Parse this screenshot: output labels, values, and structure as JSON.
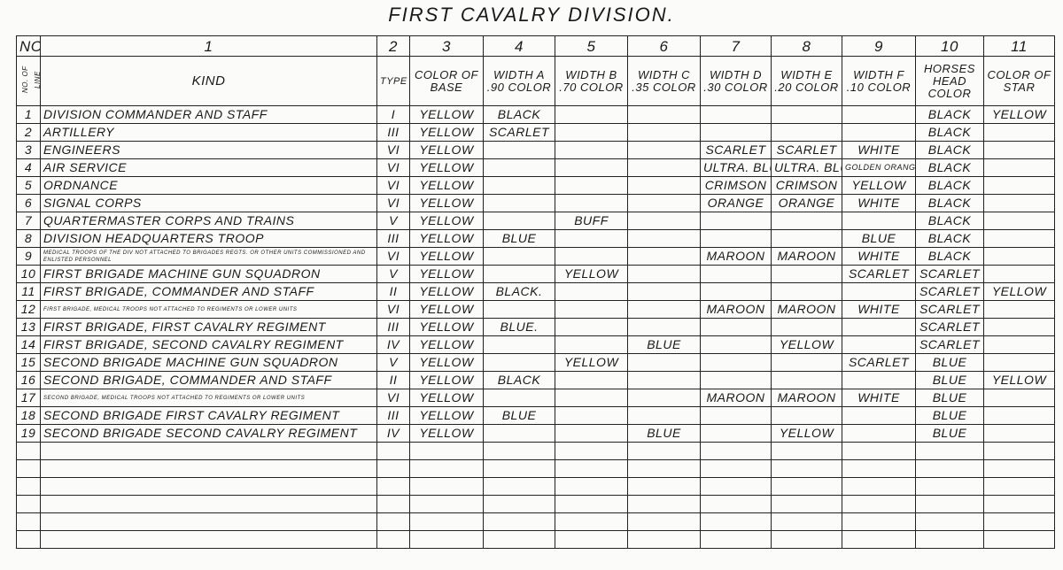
{
  "title": "FIRST CAVALRY DIVISION.",
  "header": {
    "corner_top": "NO. OF COL.",
    "corner_side": "NO. OF LINE",
    "column_numbers": [
      "1",
      "2",
      "3",
      "4",
      "5",
      "6",
      "7",
      "8",
      "9",
      "10",
      "11"
    ],
    "column_labels": [
      "KIND",
      "TYPE",
      "COLOR OF BASE",
      "WIDTH A .90 COLOR",
      "WIDTH B .70 COLOR",
      "WIDTH C .35 COLOR",
      "WIDTH D .30 COLOR",
      "WIDTH E .20 COLOR",
      "WIDTH F .10 COLOR",
      "HORSES HEAD COLOR",
      "COLOR OF STAR"
    ]
  },
  "rows": [
    {
      "line": "1",
      "kind": "DIVISION COMMANDER AND STAFF",
      "cells": [
        "I",
        "YELLOW",
        "BLACK",
        "",
        "",
        "",
        "",
        "",
        "BLACK",
        "YELLOW"
      ]
    },
    {
      "line": "2",
      "kind": "ARTILLERY",
      "cells": [
        "III",
        "YELLOW",
        "SCARLET",
        "",
        "",
        "",
        "",
        "",
        "BLACK",
        ""
      ]
    },
    {
      "line": "3",
      "kind": "ENGINEERS",
      "cells": [
        "VI",
        "YELLOW",
        "",
        "",
        "",
        "SCARLET",
        "SCARLET",
        "WHITE",
        "BLACK",
        ""
      ]
    },
    {
      "line": "4",
      "kind": "AIR SERVICE",
      "cells": [
        "VI",
        "YELLOW",
        "",
        "",
        "",
        "ULTRA. BLUE",
        "ULTRA. BLUE",
        "GOLDEN ORANGE",
        "BLACK",
        ""
      ]
    },
    {
      "line": "5",
      "kind": "ORDNANCE",
      "cells": [
        "VI",
        "YELLOW",
        "",
        "",
        "",
        "CRIMSON",
        "CRIMSON",
        "YELLOW",
        "BLACK",
        ""
      ]
    },
    {
      "line": "6",
      "kind": "SIGNAL CORPS",
      "cells": [
        "VI",
        "YELLOW",
        "",
        "",
        "",
        "ORANGE",
        "ORANGE",
        "WHITE",
        "BLACK",
        ""
      ]
    },
    {
      "line": "7",
      "kind": "QUARTERMASTER CORPS AND TRAINS",
      "cells": [
        "V",
        "YELLOW",
        "",
        "BUFF",
        "",
        "",
        "",
        "",
        "BLACK",
        ""
      ]
    },
    {
      "line": "8",
      "kind": "DIVISION HEADQUARTERS TROOP",
      "cells": [
        "III",
        "YELLOW",
        "BLUE",
        "",
        "",
        "",
        "",
        "BLUE",
        "BLACK",
        ""
      ]
    },
    {
      "line": "9",
      "kind": "MEDICAL TROOPS OF THE DIV NOT ATTACHED TO BRIGADES REGTS. OR OTHER UNITS COMMISSIONED AND ENLISTED PERSONNEL",
      "small": true,
      "cells": [
        "VI",
        "YELLOW",
        "",
        "",
        "",
        "MAROON",
        "MAROON",
        "WHITE",
        "BLACK",
        ""
      ]
    },
    {
      "line": "10",
      "kind": "FIRST BRIGADE MACHINE GUN SQUADRON",
      "cells": [
        "V",
        "YELLOW",
        "",
        "YELLOW",
        "",
        "",
        "",
        "SCARLET",
        "SCARLET",
        ""
      ]
    },
    {
      "line": "11",
      "kind": "FIRST BRIGADE, COMMANDER AND STAFF",
      "cells": [
        "II",
        "YELLOW",
        "BLACK.",
        "",
        "",
        "",
        "",
        "",
        "SCARLET",
        "YELLOW"
      ]
    },
    {
      "line": "12",
      "kind": "FIRST BRIGADE, MEDICAL TROOPS NOT ATTACHED TO REGIMENTS OR LOWER UNITS",
      "small": true,
      "cells": [
        "VI",
        "YELLOW",
        "",
        "",
        "",
        "MAROON",
        "MAROON",
        "WHITE",
        "SCARLET",
        ""
      ]
    },
    {
      "line": "13",
      "kind": "FIRST BRIGADE, FIRST CAVALRY REGIMENT",
      "cells": [
        "III",
        "YELLOW",
        "BLUE.",
        "",
        "",
        "",
        "",
        "",
        "SCARLET",
        ""
      ]
    },
    {
      "line": "14",
      "kind": "FIRST BRIGADE, SECOND CAVALRY REGIMENT",
      "cells": [
        "IV",
        "YELLOW",
        "",
        "",
        "BLUE",
        "",
        "YELLOW",
        "",
        "SCARLET",
        ""
      ]
    },
    {
      "line": "15",
      "kind": "SECOND BRIGADE MACHINE GUN SQUADRON",
      "cells": [
        "V",
        "YELLOW",
        "",
        "YELLOW",
        "",
        "",
        "",
        "SCARLET",
        "BLUE",
        ""
      ]
    },
    {
      "line": "16",
      "kind": "SECOND BRIGADE, COMMANDER AND STAFF",
      "cells": [
        "II",
        "YELLOW",
        "BLACK",
        "",
        "",
        "",
        "",
        "",
        "BLUE",
        "YELLOW"
      ]
    },
    {
      "line": "17",
      "kind": "SECOND BRIGADE, MEDICAL TROOPS NOT ATTACHED TO REGIMENTS OR LOWER UNITS",
      "small": true,
      "cells": [
        "VI",
        "YELLOW",
        "",
        "",
        "",
        "MAROON",
        "MAROON",
        "WHITE",
        "BLUE",
        ""
      ]
    },
    {
      "line": "18",
      "kind": "SECOND BRIGADE FIRST CAVALRY REGIMENT",
      "cells": [
        "III",
        "YELLOW",
        "BLUE",
        "",
        "",
        "",
        "",
        "",
        "BLUE",
        ""
      ]
    },
    {
      "line": "19",
      "kind": "SECOND BRIGADE SECOND CAVALRY REGIMENT",
      "cells": [
        "IV",
        "YELLOW",
        "",
        "",
        "BLUE",
        "",
        "YELLOW",
        "",
        "BLUE",
        ""
      ]
    }
  ]
}
